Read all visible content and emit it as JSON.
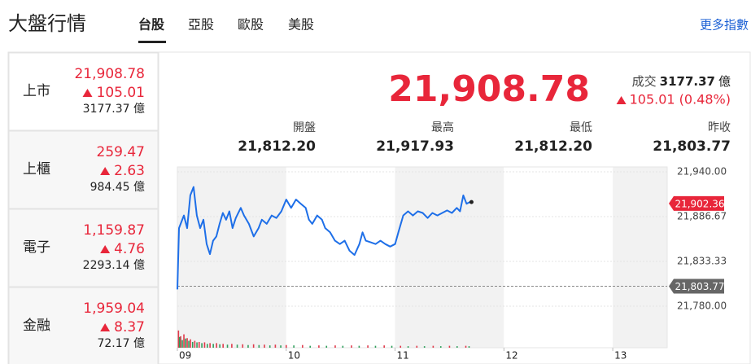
{
  "header": {
    "title": "大盤行情",
    "tabs": [
      "台股",
      "亞股",
      "歐股",
      "美股"
    ],
    "active_tab": 0,
    "more_link": "更多指數"
  },
  "markets": [
    {
      "name": "上市",
      "value": "21,908.78",
      "change": "105.01",
      "volume": "3177.37 億"
    },
    {
      "name": "上櫃",
      "value": "259.47",
      "change": "2.63",
      "volume": "984.45 億"
    },
    {
      "name": "電子",
      "value": "1,159.87",
      "change": "4.76",
      "volume": "2293.14 億"
    },
    {
      "name": "金融",
      "value": "1,959.04",
      "change": "8.37",
      "volume": "72.17 億"
    }
  ],
  "quote": {
    "price": "21,908.78",
    "volume_label": "成交",
    "volume": "3177.37",
    "volume_unit": "億",
    "change": "105.01 (0.48%)",
    "stats": [
      {
        "label": "開盤",
        "value": "21,812.20"
      },
      {
        "label": "最高",
        "value": "21,917.93"
      },
      {
        "label": "最低",
        "value": "21,812.20"
      },
      {
        "label": "昨收",
        "value": "21,803.77"
      }
    ]
  },
  "chart_data": {
    "type": "line",
    "xlim": [
      9,
      13.5
    ],
    "xticks": [
      {
        "value": 9,
        "label": "09"
      },
      {
        "value": 10,
        "label": "10"
      },
      {
        "value": 11,
        "label": "11"
      },
      {
        "value": 12,
        "label": "12"
      },
      {
        "value": 13,
        "label": "13"
      }
    ],
    "ylim": [
      21780,
      21940
    ],
    "yticks": [
      {
        "value": 21940,
        "label": "21,940.00"
      },
      {
        "value": 21886.67,
        "label": "21,886.67"
      },
      {
        "value": 21833.33,
        "label": "21,833.33"
      },
      {
        "value": 21780,
        "label": "21,780.00"
      }
    ],
    "grid": true,
    "series": [
      {
        "color": "#1e6fe8",
        "x": [
          9.0,
          9.015,
          9.06,
          9.09,
          9.119,
          9.149,
          9.179,
          9.209,
          9.239,
          9.269,
          9.299,
          9.328,
          9.358,
          9.388,
          9.418,
          9.448,
          9.478,
          9.507,
          9.537,
          9.582,
          9.612,
          9.657,
          9.701,
          9.746,
          9.776,
          9.821,
          9.866,
          9.91,
          9.955,
          10.0,
          10.045,
          10.09,
          10.134,
          10.179,
          10.209,
          10.239,
          10.284,
          10.328,
          10.358,
          10.403,
          10.448,
          10.493,
          10.537,
          10.582,
          10.627,
          10.672,
          10.701,
          10.731,
          10.776,
          10.821,
          10.866,
          10.91,
          10.955,
          11.0,
          11.03,
          11.075,
          11.119,
          11.164,
          11.209,
          11.254,
          11.299,
          11.343,
          11.388,
          11.433,
          11.478,
          11.522,
          11.567,
          11.597,
          11.627,
          11.657,
          11.687
        ],
        "values": [
          21800,
          21873,
          21888,
          21873,
          21912,
          21922,
          21888,
          21873,
          21883,
          21854,
          21842,
          21858,
          21863,
          21878,
          21891,
          21883,
          21893,
          21873,
          21885,
          21897,
          21888,
          21878,
          21863,
          21873,
          21883,
          21878,
          21888,
          21885,
          21893,
          21907,
          21897,
          21907,
          21902,
          21897,
          21883,
          21878,
          21888,
          21883,
          21873,
          21868,
          21858,
          21854,
          21858,
          21846,
          21841,
          21854,
          21868,
          21858,
          21856,
          21854,
          21858,
          21854,
          21851,
          21854,
          21868,
          21888,
          21893,
          21888,
          21893,
          21891,
          21885,
          21891,
          21888,
          21891,
          21894,
          21891,
          21897,
          21893,
          21912,
          21902,
          21904
        ]
      }
    ],
    "last_label": {
      "value": 21902.36,
      "label": "21,902.36"
    },
    "ref_line": {
      "value": 21803.77,
      "label": "21,803.77"
    },
    "vlim": [
      0,
      100
    ],
    "volume": [
      {
        "color": "#e0394a",
        "x": [
          9.01,
          9.03,
          9.06,
          9.09,
          9.12,
          9.16,
          9.2,
          9.25,
          9.3,
          9.36,
          9.42,
          9.5,
          9.6,
          9.7,
          9.8,
          9.9,
          10.0,
          10.15,
          10.3,
          10.45,
          10.6,
          10.75,
          10.9,
          11.05,
          11.2,
          11.35,
          11.5,
          11.65
        ],
        "values": [
          45,
          30,
          35,
          25,
          22,
          18,
          15,
          14,
          12,
          12,
          10,
          10,
          9,
          9,
          8,
          8,
          7,
          7,
          6,
          6,
          6,
          6,
          6,
          5,
          5,
          5,
          5,
          5
        ]
      },
      {
        "color": "#2e9e5b",
        "x": [
          9.02,
          9.045,
          9.075,
          9.105,
          9.14,
          9.18,
          9.225,
          9.275,
          9.33,
          9.39,
          9.46,
          9.55,
          9.65,
          9.75,
          9.85,
          9.95,
          10.07,
          10.22,
          10.37,
          10.52,
          10.67,
          10.82,
          10.97,
          11.12,
          11.27,
          11.42,
          11.57,
          11.68
        ],
        "values": [
          28,
          20,
          24,
          18,
          15,
          14,
          12,
          10,
          10,
          9,
          8,
          8,
          7,
          7,
          6,
          6,
          6,
          5,
          5,
          5,
          5,
          5,
          5,
          4,
          4,
          4,
          4,
          4
        ]
      }
    ]
  }
}
